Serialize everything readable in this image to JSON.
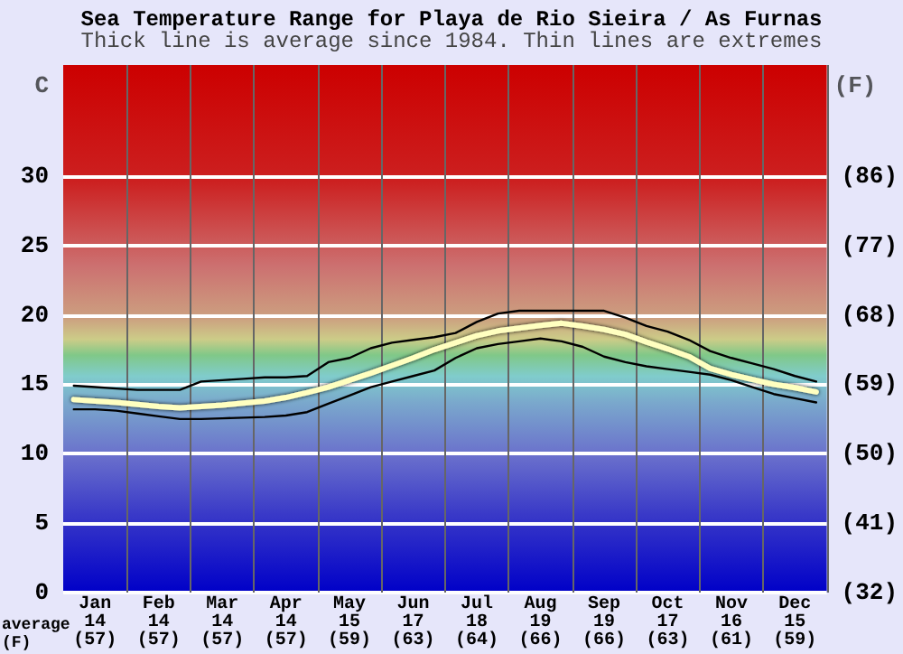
{
  "chart_data": {
    "type": "line",
    "title": "Sea Temperature Range for Playa de Rio Sieira / As Furnas",
    "subtitle": "Thick line is average since 1984. Thin lines are extremes",
    "ylabel": "C",
    "y2label": "(F)",
    "categories": [
      null,
      "Jan\n14\n(57)",
      null,
      null,
      "Feb\n14\n(57)",
      null,
      null,
      "Mar\n14\n(57)",
      null,
      null,
      "Apr\n14\n(57)",
      null,
      null,
      "May\n15\n(59)",
      null,
      null,
      "Jun\n17\n(63)",
      null,
      null,
      "Jul\n18\n(64)",
      null,
      null,
      "Aug\n19\n(66)",
      null,
      null,
      "Sep\n19\n(66)",
      null,
      null,
      "Oct\n17\n(63)",
      null,
      null,
      "Nov\n16\n(61)",
      null,
      null,
      "Dec\n15\n(59)",
      null
    ],
    "ylim": [
      0,
      38
    ],
    "yticks": [
      0,
      5,
      10,
      15,
      20,
      25,
      30
    ],
    "y2lim": [
      32,
      100.4
    ],
    "y2ticks": [
      {
        "value": 32,
        "label": "(32)"
      },
      {
        "value": 41,
        "label": "(41)"
      },
      {
        "value": 50,
        "label": "(50)"
      },
      {
        "value": 59,
        "label": "(59)"
      },
      {
        "value": 68,
        "label": "(68)"
      },
      {
        "value": 77,
        "label": "(77)"
      },
      {
        "value": 86,
        "label": "(86)"
      }
    ],
    "grid": true,
    "line_style": "solid",
    "marker": "none",
    "annotations": [
      "average\n(F)"
    ],
    "series": [
      {
        "color": "#000000",
        "values": [
          14.9,
          14.8,
          14.7,
          14.6,
          14.6,
          14.6,
          15.2,
          15.3,
          15.4,
          15.5,
          15.5,
          15.6,
          16.6,
          16.9,
          17.6,
          18.0,
          18.2,
          18.4,
          18.7,
          19.5,
          20.1,
          20.3,
          20.3,
          20.3,
          20.3,
          20.3,
          19.8,
          19.2,
          18.8,
          18.2,
          17.4,
          16.9,
          16.5,
          16.1,
          15.6,
          15.2
        ]
      },
      {
        "color": "#ffffc0",
        "values": [
          13.9,
          13.8,
          13.7,
          13.55,
          13.4,
          13.3,
          13.4,
          13.5,
          13.65,
          13.8,
          14.05,
          14.4,
          14.8,
          15.3,
          15.8,
          16.35,
          16.9,
          17.5,
          18.0,
          18.5,
          18.85,
          19.05,
          19.25,
          19.4,
          19.2,
          18.95,
          18.6,
          18.05,
          17.55,
          17.0,
          16.15,
          15.7,
          15.35,
          15.0,
          14.75,
          14.45
        ]
      },
      {
        "color": "#000000",
        "values": [
          13.2,
          13.2,
          13.1,
          12.9,
          12.7,
          12.5,
          12.5,
          12.55,
          12.6,
          12.65,
          12.75,
          13.0,
          13.6,
          14.2,
          14.8,
          15.2,
          15.6,
          16.0,
          16.9,
          17.6,
          17.9,
          18.1,
          18.3,
          18.1,
          17.7,
          17.0,
          16.6,
          16.3,
          16.1,
          15.9,
          15.7,
          15.3,
          14.8,
          14.3,
          14.0,
          13.7
        ]
      }
    ]
  }
}
